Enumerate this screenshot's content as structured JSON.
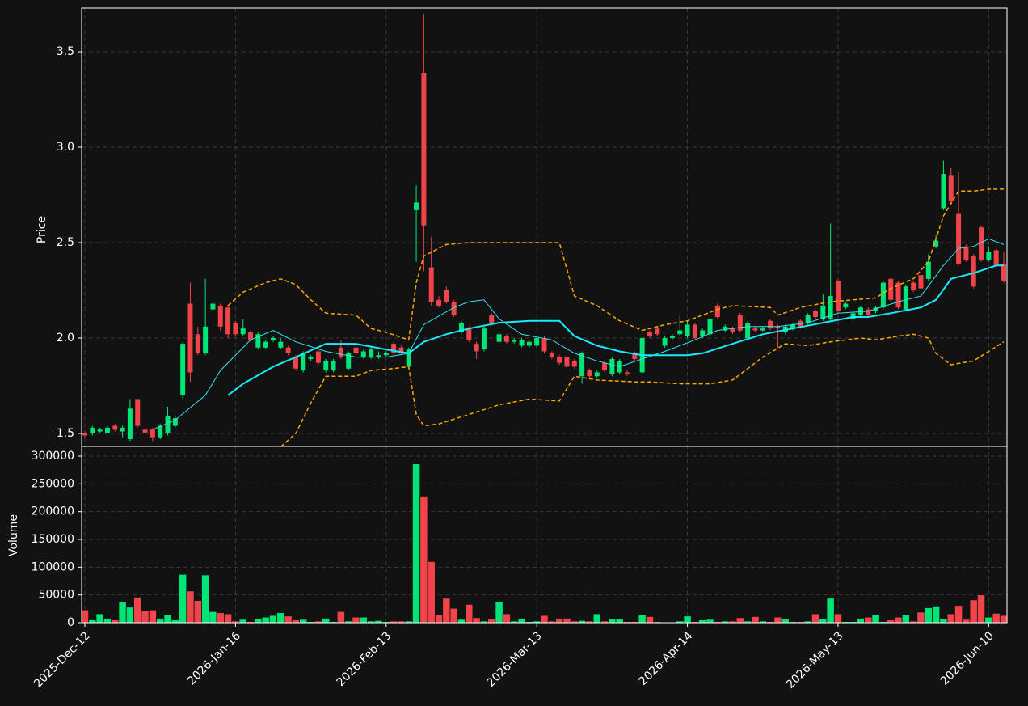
{
  "chart_data": [
    {
      "type": "candlestick",
      "ylabel": "Price",
      "ylim": [
        1.432,
        3.729
      ],
      "yticks": [
        1.5,
        {
          "value": 2,
          "label": "2.0"
        },
        2.5,
        {
          "value": 3,
          "label": "3.0"
        },
        3.5
      ],
      "grid": true,
      "up_color": "#00e676",
      "down_color": "#f0434a",
      "open": [
        1.5,
        1.5,
        1.51,
        1.5,
        1.54,
        1.51,
        1.47,
        1.68,
        1.52,
        1.52,
        1.48,
        1.5,
        1.54,
        1.7,
        2.18,
        2.02,
        1.92,
        2.15,
        2.17,
        2.16,
        2.08,
        2.02,
        2.03,
        1.95,
        1.95,
        1.99,
        1.95,
        1.95,
        1.9,
        1.83,
        1.89,
        1.93,
        1.83,
        1.83,
        1.95,
        1.84,
        1.95,
        1.9,
        1.9,
        1.9,
        1.91,
        1.97,
        1.95,
        1.85,
        2.67,
        3.39,
        2.37,
        2.2,
        2.25,
        2.19,
        2.03,
        2.05,
        1.97,
        1.94,
        2.12,
        1.98,
        2.01,
        1.98,
        1.96,
        1.96,
        1.96,
        2.0,
        1.92,
        1.9,
        1.9,
        1.88,
        1.8,
        1.83,
        1.8,
        1.87,
        1.81,
        1.82,
        1.82,
        1.92,
        1.82,
        2.03,
        2.05,
        1.96,
        2.0,
        2.02,
        2.01,
        2.07,
        2.01,
        2.02,
        2.17,
        2.04,
        2.05,
        2.12,
        2.0,
        2.05,
        2.04,
        2.09,
        2.06,
        2.03,
        2.05,
        2.09,
        2.08,
        2.14,
        2.1,
        2.1,
        2.3,
        2.16,
        2.1,
        2.12,
        2.15,
        2.14,
        2.16,
        2.31,
        2.29,
        2.15,
        2.29,
        2.33,
        2.31,
        2.48,
        2.68,
        2.85,
        2.65,
        2.48,
        2.43,
        2.58,
        2.41,
        2.46,
        2.39
      ],
      "high": [
        1.51,
        1.54,
        1.53,
        1.54,
        1.55,
        1.54,
        1.68,
        1.68,
        1.53,
        1.53,
        1.55,
        1.64,
        1.59,
        1.98,
        2.29,
        2.06,
        2.31,
        2.19,
        2.18,
        2.17,
        2.09,
        2.1,
        2.04,
        2.03,
        1.99,
        2.01,
        2.0,
        1.96,
        1.91,
        1.93,
        1.91,
        1.94,
        1.89,
        1.89,
        1.99,
        1.93,
        1.96,
        1.94,
        1.96,
        1.93,
        1.93,
        1.98,
        1.96,
        1.95,
        2.8,
        3.7,
        2.53,
        2.22,
        2.27,
        2.2,
        2.09,
        2.06,
        1.98,
        2.06,
        2.13,
        2.03,
        2.02,
        2.0,
        2.0,
        1.99,
        2.01,
        2.01,
        1.93,
        1.91,
        1.91,
        1.89,
        1.93,
        1.84,
        1.83,
        1.88,
        1.9,
        1.89,
        1.83,
        1.93,
        2.01,
        2.04,
        2.06,
        2.01,
        2.02,
        2.12,
        2.09,
        2.08,
        2.05,
        2.11,
        2.18,
        2.07,
        2.06,
        2.13,
        2.09,
        2.06,
        2.06,
        2.1,
        2.07,
        2.07,
        2.08,
        2.1,
        2.13,
        2.15,
        2.23,
        2.6,
        2.31,
        2.19,
        2.14,
        2.17,
        2.16,
        2.17,
        2.3,
        2.32,
        2.3,
        2.28,
        2.3,
        2.35,
        2.44,
        2.54,
        2.93,
        2.89,
        2.87,
        2.49,
        2.44,
        2.59,
        2.48,
        2.47,
        2.45
      ],
      "low": [
        1.48,
        1.49,
        1.5,
        1.5,
        1.51,
        1.48,
        1.46,
        1.53,
        1.49,
        1.46,
        1.47,
        1.49,
        1.53,
        1.68,
        1.77,
        1.91,
        1.91,
        2.14,
        2.04,
        2.0,
        2.01,
        2.01,
        1.98,
        1.94,
        1.94,
        1.98,
        1.94,
        1.91,
        1.83,
        1.82,
        1.88,
        1.86,
        1.82,
        1.82,
        1.89,
        1.83,
        1.91,
        1.89,
        1.89,
        1.89,
        1.9,
        1.91,
        1.91,
        1.84,
        2.4,
        2.35,
        2.17,
        2.16,
        2.18,
        2.11,
        2.02,
        1.98,
        1.89,
        1.93,
        2.07,
        1.97,
        1.97,
        1.97,
        1.95,
        1.95,
        1.95,
        1.92,
        1.89,
        1.86,
        1.84,
        1.84,
        1.76,
        1.79,
        1.79,
        1.82,
        1.8,
        1.81,
        1.8,
        1.88,
        1.81,
        2.0,
        2.01,
        1.95,
        1.99,
        2.01,
        2.0,
        1.99,
        2.0,
        2.01,
        2.1,
        2.03,
        2.02,
        2.03,
        1.99,
        2.03,
        2.03,
        2.04,
        1.95,
        2.02,
        2.04,
        2.05,
        2.07,
        2.1,
        2.09,
        2.09,
        2.13,
        2.15,
        2.09,
        2.11,
        2.11,
        2.13,
        2.15,
        2.19,
        2.15,
        2.14,
        2.24,
        2.25,
        2.3,
        2.47,
        2.67,
        2.7,
        2.38,
        2.4,
        2.26,
        2.4,
        2.4,
        2.37,
        2.29
      ],
      "close": [
        1.49,
        1.53,
        1.52,
        1.53,
        1.52,
        1.53,
        1.63,
        1.54,
        1.5,
        1.48,
        1.54,
        1.59,
        1.58,
        1.97,
        1.82,
        1.92,
        2.06,
        2.18,
        2.06,
        2.02,
        2.02,
        2.05,
        1.99,
        2.02,
        1.98,
        2.0,
        1.98,
        1.92,
        1.84,
        1.92,
        1.9,
        1.87,
        1.88,
        1.88,
        1.9,
        1.92,
        1.92,
        1.93,
        1.94,
        1.91,
        1.92,
        1.92,
        1.92,
        1.94,
        2.71,
        2.59,
        2.19,
        2.17,
        2.19,
        2.12,
        2.08,
        1.99,
        1.93,
        2.05,
        2.08,
        2.02,
        1.98,
        1.99,
        1.99,
        1.98,
        2.0,
        1.93,
        1.9,
        1.87,
        1.85,
        1.85,
        1.92,
        1.8,
        1.82,
        1.83,
        1.89,
        1.88,
        1.81,
        1.89,
        2.0,
        2.01,
        2.02,
        2.0,
        2.01,
        2.04,
        2.07,
        2.0,
        2.04,
        2.1,
        2.11,
        2.06,
        2.03,
        2.04,
        2.08,
        2.04,
        2.05,
        2.05,
        2.05,
        2.06,
        2.07,
        2.06,
        2.12,
        2.11,
        2.17,
        2.22,
        2.14,
        2.18,
        2.13,
        2.16,
        2.12,
        2.16,
        2.29,
        2.2,
        2.16,
        2.27,
        2.25,
        2.26,
        2.4,
        2.51,
        2.86,
        2.72,
        2.39,
        2.41,
        2.27,
        2.41,
        2.45,
        2.38,
        2.3
      ],
      "overlays": [
        {
          "color": "#2ee6f0",
          "width": 1,
          "dash": false,
          "x": [
            9,
            12,
            16,
            18,
            22,
            25,
            28,
            32,
            36,
            40,
            43,
            45,
            49,
            51,
            53,
            55,
            58,
            62,
            65,
            68,
            71,
            74,
            77,
            81,
            84,
            88,
            92,
            96,
            100,
            104,
            108,
            111,
            114,
            116,
            118,
            120,
            122
          ],
          "values": [
            1.52,
            1.57,
            1.7,
            1.83,
            1.99,
            2.04,
            1.98,
            1.93,
            1.9,
            1.9,
            1.92,
            2.07,
            2.16,
            2.19,
            2.2,
            2.1,
            2.02,
            1.99,
            1.92,
            1.88,
            1.85,
            1.89,
            1.93,
            1.99,
            2.04,
            2.06,
            2.06,
            2.08,
            2.13,
            2.14,
            2.19,
            2.22,
            2.38,
            2.47,
            2.48,
            2.52,
            2.49
          ]
        },
        {
          "color": "#19eaff",
          "width": 2,
          "dash": false,
          "x": [
            19,
            21,
            25,
            28,
            32,
            36,
            40,
            43,
            45,
            48,
            51,
            55,
            59,
            63,
            65,
            68,
            71,
            74,
            80,
            82,
            86,
            90,
            94,
            98,
            102,
            104,
            107,
            111,
            113,
            115,
            118,
            121,
            122
          ],
          "values": [
            1.7,
            1.76,
            1.85,
            1.9,
            1.97,
            1.97,
            1.94,
            1.92,
            1.98,
            2.02,
            2.05,
            2.08,
            2.09,
            2.09,
            2.01,
            1.96,
            1.93,
            1.91,
            1.91,
            1.92,
            1.97,
            2.02,
            2.05,
            2.08,
            2.11,
            2.11,
            2.13,
            2.16,
            2.2,
            2.31,
            2.34,
            2.38,
            2.38
          ]
        },
        {
          "color": "#ffa500",
          "width": 1.5,
          "dash": true,
          "x": [
            19,
            21,
            24,
            26,
            28,
            30,
            32,
            36,
            38,
            40,
            43,
            44,
            45,
            48,
            51,
            63,
            65,
            68,
            71,
            74,
            77,
            80,
            84,
            86,
            91,
            92,
            95,
            99,
            102,
            105,
            107,
            110,
            112,
            114,
            116,
            118,
            120,
            122
          ],
          "values": [
            2.17,
            2.24,
            2.29,
            2.31,
            2.28,
            2.2,
            2.13,
            2.12,
            2.05,
            2.03,
            1.99,
            2.29,
            2.43,
            2.49,
            2.5,
            2.5,
            2.22,
            2.17,
            2.09,
            2.04,
            2.07,
            2.09,
            2.15,
            2.17,
            2.16,
            2.12,
            2.16,
            2.19,
            2.2,
            2.21,
            2.26,
            2.31,
            2.4,
            2.64,
            2.77,
            2.77,
            2.78,
            2.78
          ]
        },
        {
          "color": "#ffa500",
          "width": 1.5,
          "dash": true,
          "x": [
            26,
            28,
            30,
            32,
            36,
            38,
            41,
            43,
            44,
            45,
            47,
            51,
            55,
            59,
            63,
            65,
            68,
            73,
            75,
            79,
            83,
            86,
            90,
            93,
            96,
            99,
            103,
            105,
            108,
            110,
            112,
            113,
            115,
            118,
            122
          ],
          "values": [
            1.43,
            1.5,
            1.66,
            1.8,
            1.8,
            1.83,
            1.84,
            1.85,
            1.6,
            1.54,
            1.55,
            1.6,
            1.65,
            1.68,
            1.67,
            1.8,
            1.78,
            1.77,
            1.77,
            1.76,
            1.76,
            1.78,
            1.9,
            1.97,
            1.96,
            1.98,
            2.0,
            1.99,
            2.01,
            2.02,
            2.0,
            1.92,
            1.86,
            1.88,
            1.98
          ]
        }
      ]
    },
    {
      "type": "bar",
      "ylabel": "Volume",
      "ylim": [
        0,
        317500
      ],
      "yticks": [
        0,
        50000,
        100000,
        150000,
        200000,
        250000,
        300000
      ],
      "grid": true,
      "categories": [
        "2025-Dec-12",
        null,
        null,
        null,
        null,
        null,
        null,
        null,
        null,
        null,
        null,
        null,
        null,
        null,
        null,
        null,
        null,
        null,
        null,
        null,
        "2026-Jan-16",
        null,
        null,
        null,
        null,
        null,
        null,
        null,
        null,
        null,
        null,
        null,
        null,
        null,
        null,
        null,
        null,
        null,
        null,
        null,
        "2026-Feb-13",
        null,
        null,
        null,
        null,
        null,
        null,
        null,
        null,
        null,
        null,
        null,
        null,
        null,
        null,
        null,
        null,
        null,
        null,
        null,
        "2026-Mar-13",
        null,
        null,
        null,
        null,
        null,
        null,
        null,
        null,
        null,
        null,
        null,
        null,
        null,
        null,
        null,
        null,
        null,
        null,
        null,
        "2026-Apr-14",
        null,
        null,
        null,
        null,
        null,
        null,
        null,
        null,
        null,
        null,
        null,
        null,
        null,
        null,
        null,
        null,
        null,
        null,
        null,
        "2026-May-13",
        null,
        null,
        null,
        null,
        null,
        null,
        null,
        null,
        null,
        null,
        null,
        null,
        null,
        null,
        null,
        null,
        null,
        null,
        null,
        "2026-Jun-10",
        null,
        null
      ],
      "values": [
        23000,
        5000,
        16000,
        8000,
        5000,
        37000,
        28000,
        46000,
        21000,
        23000,
        8000,
        15000,
        5000,
        87000,
        57000,
        40000,
        86000,
        20000,
        18000,
        16000,
        3000,
        6000,
        2000,
        8000,
        10000,
        13000,
        18000,
        12000,
        5000,
        6000,
        2000,
        3000,
        8000,
        2000,
        20000,
        3000,
        10000,
        10000,
        3000,
        4000,
        2000,
        3000,
        3000,
        3000,
        286000,
        228000,
        110000,
        15000,
        44000,
        26000,
        6000,
        33000,
        9000,
        3000,
        7000,
        37000,
        16000,
        3000,
        8000,
        2000,
        3000,
        13000,
        3000,
        8000,
        8000,
        3000,
        4000,
        3000,
        16000,
        3000,
        7000,
        7000,
        2000,
        2000,
        14000,
        11000,
        2000,
        1000,
        1000,
        3000,
        12000,
        2000,
        5000,
        6000,
        2000,
        3000,
        3000,
        9000,
        3000,
        11000,
        3000,
        2000,
        10000,
        7000,
        2000,
        2000,
        3000,
        16000,
        7000,
        44000,
        16000,
        2000,
        2000,
        8000,
        10000,
        14000,
        2000,
        5000,
        10000,
        15000,
        3000,
        19000,
        27000,
        30000,
        7000,
        16000,
        31000,
        6000,
        41000,
        50000,
        10000,
        17000,
        13000
      ]
    }
  ]
}
